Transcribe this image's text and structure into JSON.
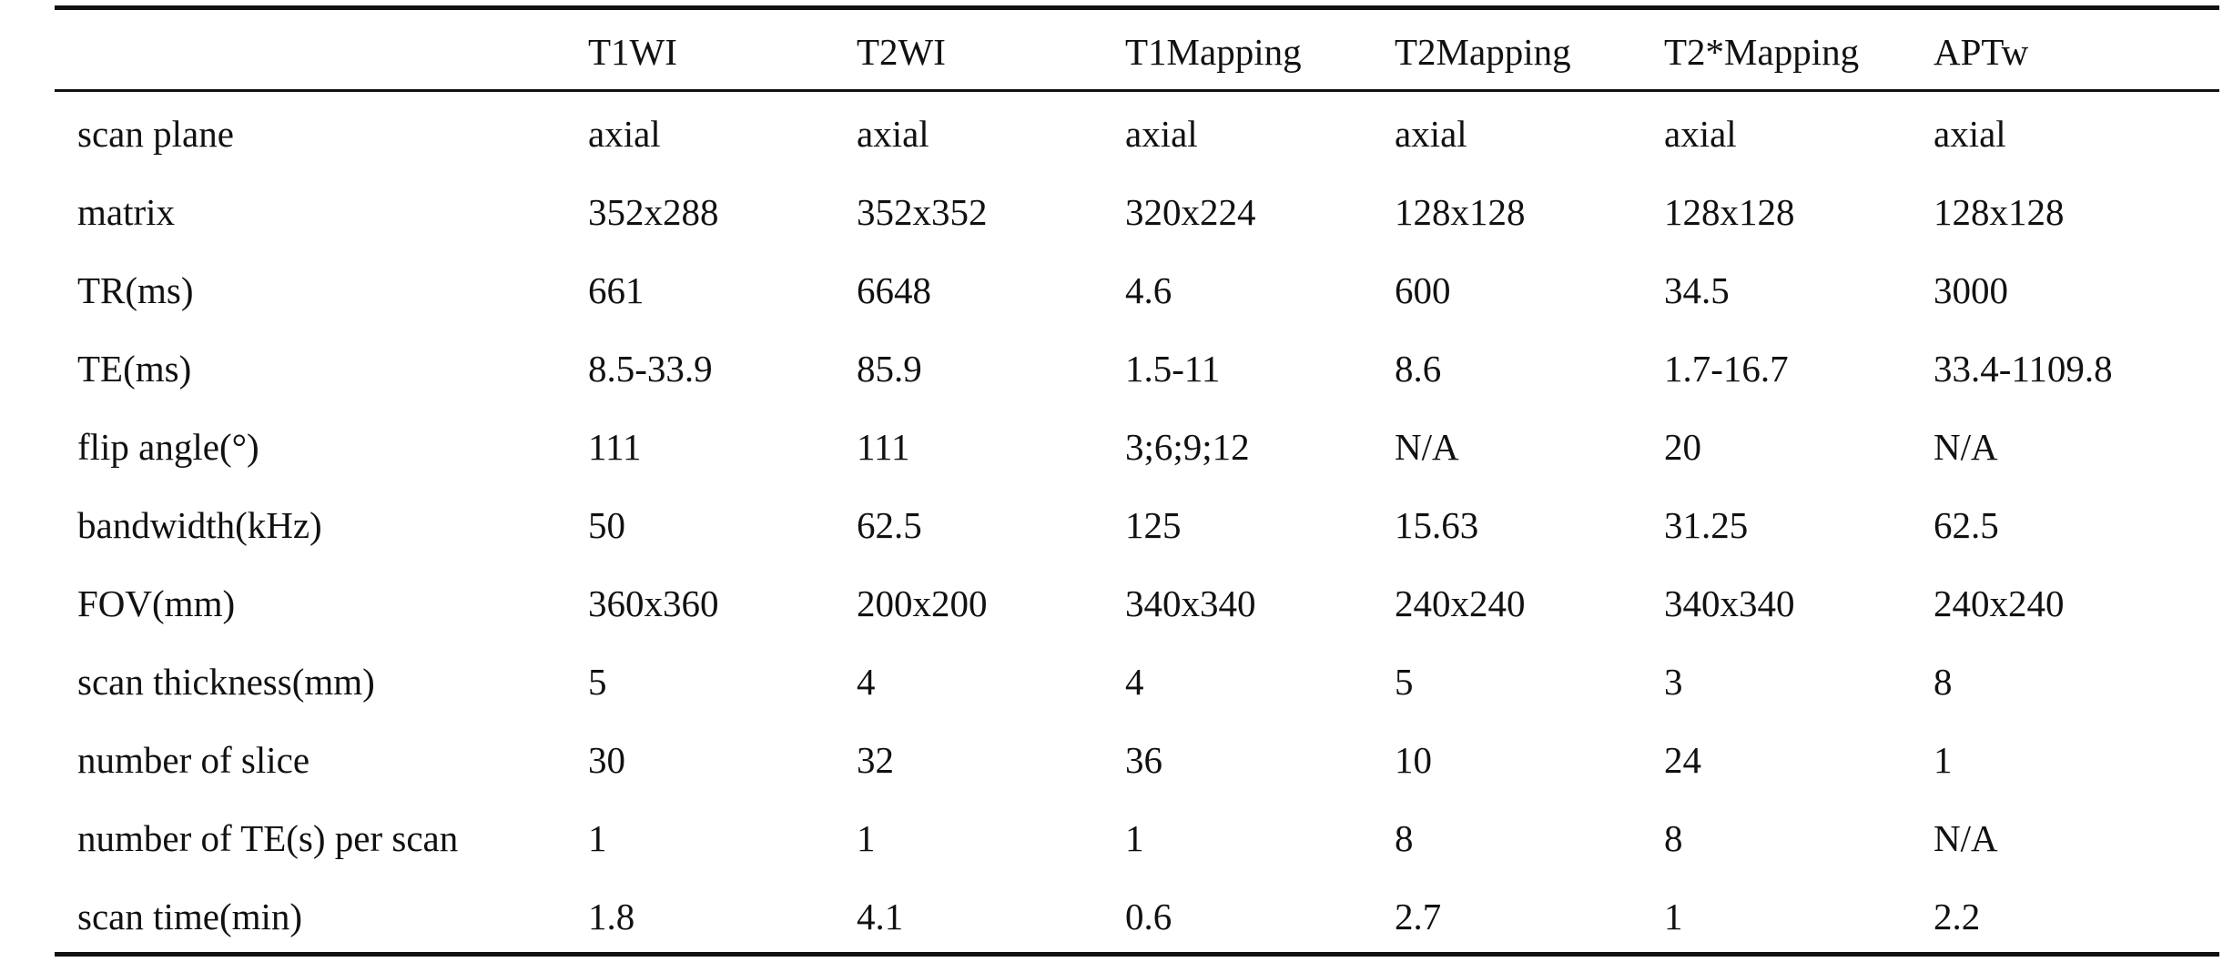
{
  "table": {
    "header": [
      "T1WI",
      "T2WI",
      "T1Mapping",
      "T2Mapping",
      "T2*Mapping",
      "APTw"
    ],
    "rows": [
      [
        "scan plane",
        "axial",
        "axial",
        "axial",
        "axial",
        "axial",
        "axial"
      ],
      [
        "matrix",
        "352x288",
        "352x352",
        "320x224",
        "128x128",
        "128x128",
        "128x128"
      ],
      [
        "TR(ms)",
        "661",
        "6648",
        "4.6",
        "600",
        "34.5",
        "3000"
      ],
      [
        "TE(ms)",
        "8.5-33.9",
        "85.9",
        "1.5-11",
        "8.6",
        "1.7-16.7",
        "33.4-1109.8"
      ],
      [
        "flip angle(°)",
        "111",
        "111",
        "3;6;9;12",
        "N/A",
        "20",
        "N/A"
      ],
      [
        "bandwidth(kHz)",
        "50",
        "62.5",
        "125",
        "15.63",
        "31.25",
        "62.5"
      ],
      [
        "FOV(mm)",
        "360x360",
        "200x200",
        "340x340",
        "240x240",
        "340x340",
        "240x240"
      ],
      [
        "scan thickness(mm)",
        "5",
        "4",
        "4",
        "5",
        "3",
        "8"
      ],
      [
        "number of slice",
        "30",
        "32",
        "36",
        "10",
        "24",
        "1"
      ],
      [
        "number of TE(s) per scan",
        "1",
        "1",
        "1",
        "8",
        "8",
        "N/A"
      ],
      [
        "scan time(min)",
        "1.8",
        "4.1",
        "0.6",
        "2.7",
        "1",
        "2.2"
      ]
    ]
  }
}
